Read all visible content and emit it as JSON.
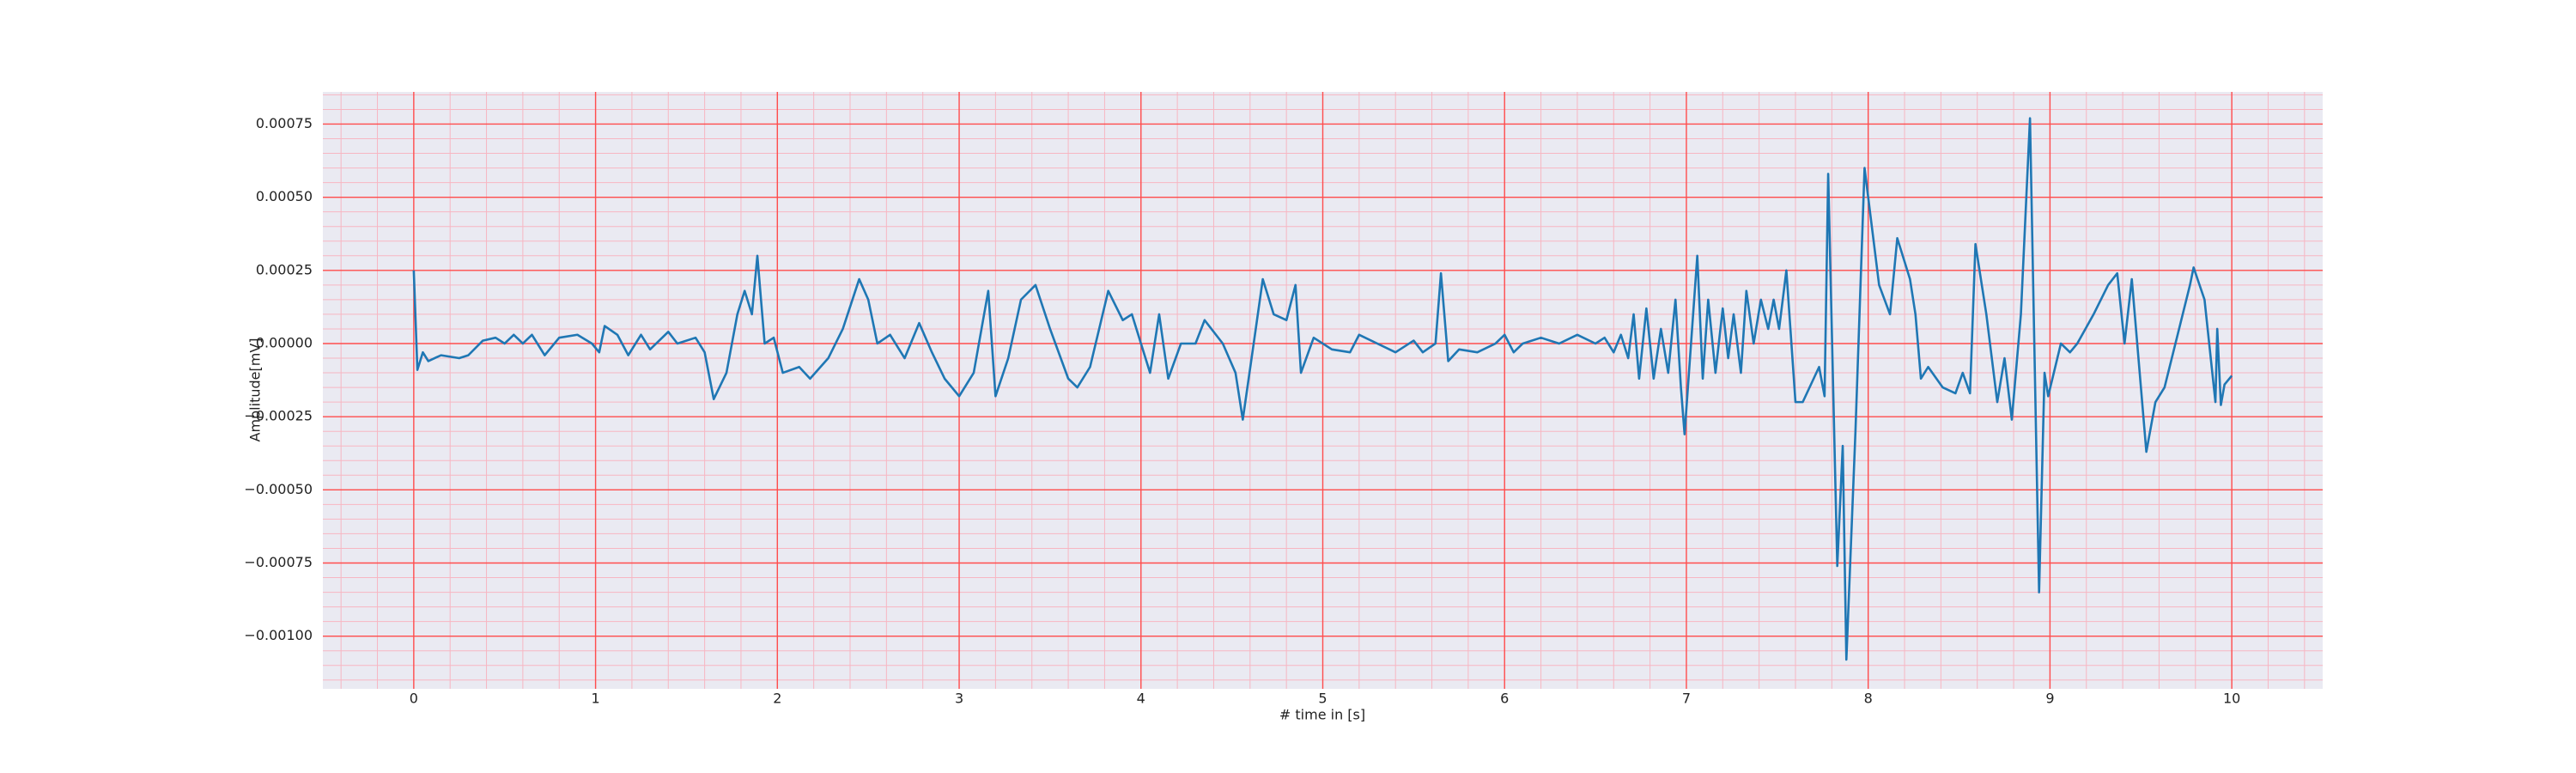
{
  "chart_data": {
    "type": "line",
    "xlabel": "# time in [s]",
    "ylabel": "Amplitude[mV]",
    "xlim": [
      -0.5,
      10.5
    ],
    "ylim": [
      -0.00118,
      0.00086
    ],
    "xticks": [
      0,
      1,
      2,
      3,
      4,
      5,
      6,
      7,
      8,
      9,
      10
    ],
    "yticks": [
      {
        "value": -0.001,
        "label": "−0.00100"
      },
      {
        "value": -0.00075,
        "label": "−0.00075"
      },
      {
        "value": -0.0005,
        "label": "−0.00050"
      },
      {
        "value": -0.00025,
        "label": "−0.00025"
      },
      {
        "value": 0,
        "label": "0.00000"
      },
      {
        "value": 0.00025,
        "label": "0.00025"
      },
      {
        "value": 0.0005,
        "label": "0.00050"
      },
      {
        "value": 0.00075,
        "label": "0.00075"
      }
    ],
    "grid": true,
    "grid_color": "#ff4d4d",
    "minor_grid": {
      "x": 0.2,
      "y": 5e-05,
      "color": "#f7b6c2"
    },
    "background": "#eaeaf2",
    "series": [
      {
        "color": "#1f77b4",
        "x": [
          0,
          0.02,
          0.05,
          0.08,
          0.15,
          0.25,
          0.3,
          0.38,
          0.45,
          0.5,
          0.55,
          0.6,
          0.65,
          0.72,
          0.8,
          0.9,
          0.98,
          1.02,
          1.05,
          1.12,
          1.18,
          1.25,
          1.3,
          1.35,
          1.4,
          1.45,
          1.55,
          1.6,
          1.65,
          1.72,
          1.78,
          1.82,
          1.86,
          1.89,
          1.93,
          1.98,
          2.03,
          2.12,
          2.18,
          2.28,
          2.36,
          2.45,
          2.5,
          2.55,
          2.62,
          2.7,
          2.78,
          2.85,
          2.92,
          3.0,
          3.08,
          3.16,
          3.2,
          3.27,
          3.34,
          3.42,
          3.5,
          3.6,
          3.65,
          3.72,
          3.82,
          3.9,
          3.95,
          4.05,
          4.1,
          4.15,
          4.22,
          4.3,
          4.35,
          4.45,
          4.52,
          4.56,
          4.62,
          4.67,
          4.73,
          4.8,
          4.85,
          4.88,
          4.95,
          5.05,
          5.15,
          5.2,
          5.3,
          5.4,
          5.5,
          5.55,
          5.62,
          5.65,
          5.69,
          5.75,
          5.85,
          5.95,
          6.0,
          6.05,
          6.1,
          6.2,
          6.3,
          6.4,
          6.5,
          6.55,
          6.6,
          6.64,
          6.68,
          6.71,
          6.74,
          6.78,
          6.82,
          6.86,
          6.9,
          6.94,
          6.97,
          6.99,
          7.06,
          7.09,
          7.12,
          7.16,
          7.2,
          7.23,
          7.26,
          7.3,
          7.33,
          7.37,
          7.41,
          7.45,
          7.48,
          7.51,
          7.55,
          7.6,
          7.64,
          7.73,
          7.76,
          7.78,
          7.83,
          7.86,
          7.88,
          7.93,
          7.98,
          8.06,
          8.12,
          8.16,
          8.23,
          8.26,
          8.29,
          8.33,
          8.41,
          8.48,
          8.52,
          8.56,
          8.59,
          8.65,
          8.71,
          8.75,
          8.79,
          8.84,
          8.89,
          8.94,
          8.97,
          8.99,
          9.06,
          9.11,
          9.15,
          9.24,
          9.32,
          9.37,
          9.41,
          9.45,
          9.53,
          9.58,
          9.63,
          9.73,
          9.77,
          9.79,
          9.85,
          9.91,
          9.92,
          9.94,
          9.96,
          10.0
        ],
        "values": [
          0.00025,
          -9e-05,
          -3e-05,
          -6e-05,
          -4e-05,
          -5e-05,
          -4e-05,
          1e-05,
          2e-05,
          0,
          3e-05,
          0,
          3e-05,
          -4e-05,
          2e-05,
          3e-05,
          0,
          -3e-05,
          6e-05,
          3e-05,
          -4e-05,
          3e-05,
          -2e-05,
          1e-05,
          4e-05,
          0,
          2e-05,
          -3e-05,
          -0.00019,
          -0.0001,
          0.0001,
          0.00018,
          0.0001,
          0.0003,
          0,
          2e-05,
          -0.0001,
          -8e-05,
          -0.00012,
          -5e-05,
          5e-05,
          0.00022,
          0.00015,
          0,
          3e-05,
          -5e-05,
          7e-05,
          -3e-05,
          -0.00012,
          -0.00018,
          -0.0001,
          0.00018,
          -0.00018,
          -5e-05,
          0.00015,
          0.0002,
          5e-05,
          -0.00012,
          -0.00015,
          -8e-05,
          0.00018,
          8e-05,
          0.0001,
          -0.0001,
          0.0001,
          -0.00012,
          0,
          0,
          8e-05,
          0,
          -0.0001,
          -0.00026,
          0,
          0.00022,
          0.0001,
          8e-05,
          0.0002,
          -0.0001,
          2e-05,
          -2e-05,
          -3e-05,
          3e-05,
          0,
          -3e-05,
          1e-05,
          -3e-05,
          0,
          0.00024,
          -6e-05,
          -2e-05,
          -3e-05,
          0,
          3e-05,
          -3e-05,
          0,
          2e-05,
          0,
          3e-05,
          0,
          2e-05,
          -3e-05,
          3e-05,
          -5e-05,
          0.0001,
          -0.00012,
          0.00012,
          -0.00012,
          5e-05,
          -0.0001,
          0.00015,
          -0.00015,
          -0.00031,
          0.0003,
          -0.00012,
          0.00015,
          -0.0001,
          0.00012,
          -5e-05,
          0.0001,
          -0.0001,
          0.00018,
          0,
          0.00015,
          5e-05,
          0.00015,
          5e-05,
          0.00025,
          -0.0002,
          -0.0002,
          -8e-05,
          -0.00018,
          0.00058,
          -0.00076,
          -0.00035,
          -0.00108,
          -0.0003,
          0.0006,
          0.0002,
          0.0001,
          0.00036,
          0.00022,
          0.0001,
          -0.00012,
          -8e-05,
          -0.00015,
          -0.00017,
          -0.0001,
          -0.00017,
          0.00034,
          0.0001,
          -0.0002,
          -5e-05,
          -0.00026,
          0.0001,
          0.00077,
          -0.00085,
          -0.0001,
          -0.00018,
          0,
          -3e-05,
          0,
          0.0001,
          0.0002,
          0.00024,
          0,
          0.00022,
          -0.00037,
          -0.0002,
          -0.00015,
          0.0001,
          0.0002,
          0.00026,
          0.00015,
          -0.0002,
          5e-05,
          -0.00021,
          -0.00014,
          -0.00011
        ]
      }
    ]
  }
}
